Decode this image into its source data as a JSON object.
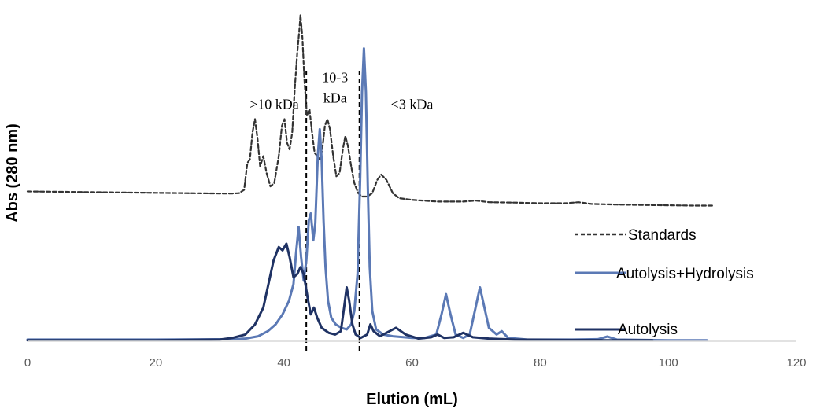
{
  "chart_data": {
    "type": "line",
    "xlabel": "Elution (mL)",
    "ylabel": "Abs (280 nm)",
    "xlim": [
      0,
      120
    ],
    "ylim": [
      0,
      1
    ],
    "x_ticks": [
      "0",
      "20",
      "40",
      "60",
      "80",
      "100",
      "120"
    ],
    "legend_position": "right",
    "annotations": [
      {
        "lines": [
          ">10 kDa"
        ],
        "x": 38.5,
        "y": 0.69
      },
      {
        "lines": [
          "10-3",
          "kDa"
        ],
        "x": 48,
        "y": 0.77
      },
      {
        "lines": [
          "<3 kDa"
        ],
        "x": 60,
        "y": 0.69
      }
    ],
    "vlines": [
      43.5,
      51.8
    ],
    "series": [
      {
        "name": "Standards",
        "color": "#333333",
        "dash": "dashed",
        "points": [
          [
            0,
            0.445
          ],
          [
            10,
            0.443
          ],
          [
            20,
            0.441
          ],
          [
            30,
            0.439
          ],
          [
            32,
            0.439
          ],
          [
            33,
            0.44
          ],
          [
            33.8,
            0.45
          ],
          [
            34.3,
            0.53
          ],
          [
            34.7,
            0.54
          ],
          [
            35.1,
            0.62
          ],
          [
            35.5,
            0.66
          ],
          [
            35.9,
            0.6
          ],
          [
            36.3,
            0.52
          ],
          [
            36.8,
            0.55
          ],
          [
            37.3,
            0.5
          ],
          [
            37.9,
            0.46
          ],
          [
            38.5,
            0.47
          ],
          [
            39.2,
            0.55
          ],
          [
            39.7,
            0.64
          ],
          [
            40.1,
            0.66
          ],
          [
            40.5,
            0.59
          ],
          [
            40.9,
            0.57
          ],
          [
            41.3,
            0.62
          ],
          [
            41.7,
            0.75
          ],
          [
            42.1,
            0.86
          ],
          [
            42.4,
            0.92
          ],
          [
            42.6,
            0.97
          ],
          [
            42.9,
            0.9
          ],
          [
            43.2,
            0.78
          ],
          [
            43.6,
            0.67
          ],
          [
            44,
            0.69
          ],
          [
            44.4,
            0.62
          ],
          [
            44.8,
            0.56
          ],
          [
            45.2,
            0.55
          ],
          [
            45.6,
            0.54
          ],
          [
            46,
            0.57
          ],
          [
            46.4,
            0.64
          ],
          [
            46.8,
            0.66
          ],
          [
            47.2,
            0.63
          ],
          [
            47.7,
            0.55
          ],
          [
            48.2,
            0.49
          ],
          [
            48.7,
            0.5
          ],
          [
            49.2,
            0.57
          ],
          [
            49.6,
            0.61
          ],
          [
            50,
            0.58
          ],
          [
            50.5,
            0.52
          ],
          [
            51,
            0.47
          ],
          [
            51.6,
            0.44
          ],
          [
            52.2,
            0.43
          ],
          [
            53,
            0.43
          ],
          [
            53.8,
            0.44
          ],
          [
            54.6,
            0.48
          ],
          [
            55.2,
            0.495
          ],
          [
            56,
            0.48
          ],
          [
            57,
            0.44
          ],
          [
            58,
            0.425
          ],
          [
            60,
            0.42
          ],
          [
            64,
            0.415
          ],
          [
            68,
            0.415
          ],
          [
            70,
            0.418
          ],
          [
            72,
            0.413
          ],
          [
            76,
            0.412
          ],
          [
            80,
            0.41
          ],
          [
            84,
            0.41
          ],
          [
            86,
            0.413
          ],
          [
            88,
            0.408
          ],
          [
            92,
            0.406
          ],
          [
            96,
            0.405
          ],
          [
            100,
            0.404
          ],
          [
            104,
            0.403
          ],
          [
            107,
            0.403
          ]
        ]
      },
      {
        "name": "Autolysis+Hydrolysis",
        "color": "#5b79b5",
        "dash": "solid",
        "points": [
          [
            0,
            0.005
          ],
          [
            20,
            0.005
          ],
          [
            32,
            0.006
          ],
          [
            34,
            0.008
          ],
          [
            36,
            0.015
          ],
          [
            37.5,
            0.03
          ],
          [
            38.7,
            0.05
          ],
          [
            39.8,
            0.08
          ],
          [
            40.8,
            0.12
          ],
          [
            41.5,
            0.17
          ],
          [
            41.9,
            0.26
          ],
          [
            42.3,
            0.34
          ],
          [
            42.7,
            0.25
          ],
          [
            43.1,
            0.18
          ],
          [
            43.5,
            0.24
          ],
          [
            43.9,
            0.36
          ],
          [
            44.2,
            0.38
          ],
          [
            44.6,
            0.3
          ],
          [
            44.9,
            0.35
          ],
          [
            45.3,
            0.55
          ],
          [
            45.6,
            0.63
          ],
          [
            45.9,
            0.54
          ],
          [
            46.2,
            0.36
          ],
          [
            46.5,
            0.22
          ],
          [
            46.9,
            0.12
          ],
          [
            47.4,
            0.07
          ],
          [
            48.1,
            0.05
          ],
          [
            49,
            0.04
          ],
          [
            49.8,
            0.035
          ],
          [
            50.5,
            0.05
          ],
          [
            51,
            0.09
          ],
          [
            51.5,
            0.2
          ],
          [
            51.9,
            0.48
          ],
          [
            52.2,
            0.74
          ],
          [
            52.5,
            0.87
          ],
          [
            52.8,
            0.74
          ],
          [
            53.1,
            0.46
          ],
          [
            53.4,
            0.22
          ],
          [
            53.8,
            0.09
          ],
          [
            54.4,
            0.035
          ],
          [
            55.5,
            0.02
          ],
          [
            57,
            0.015
          ],
          [
            60,
            0.01
          ],
          [
            62,
            0.01
          ],
          [
            63.8,
            0.02
          ],
          [
            64.6,
            0.08
          ],
          [
            65.3,
            0.14
          ],
          [
            66,
            0.08
          ],
          [
            66.8,
            0.02
          ],
          [
            68,
            0.01
          ],
          [
            69,
            0.02
          ],
          [
            69.8,
            0.09
          ],
          [
            70.6,
            0.16
          ],
          [
            71.3,
            0.1
          ],
          [
            72,
            0.04
          ],
          [
            73.2,
            0.02
          ],
          [
            74,
            0.03
          ],
          [
            75,
            0.01
          ],
          [
            78,
            0.005
          ],
          [
            85,
            0.005
          ],
          [
            89,
            0.006
          ],
          [
            90.5,
            0.014
          ],
          [
            92,
            0.005
          ],
          [
            100,
            0.003
          ],
          [
            106,
            0.003
          ]
        ]
      },
      {
        "name": "Autolysis",
        "color": "#1f3264",
        "dash": "solid",
        "points": [
          [
            0,
            0.003
          ],
          [
            10,
            0.003
          ],
          [
            20,
            0.003
          ],
          [
            30,
            0.005
          ],
          [
            32,
            0.01
          ],
          [
            34,
            0.02
          ],
          [
            35.5,
            0.05
          ],
          [
            36.8,
            0.1
          ],
          [
            37.6,
            0.17
          ],
          [
            38.4,
            0.24
          ],
          [
            39.2,
            0.28
          ],
          [
            39.8,
            0.27
          ],
          [
            40.4,
            0.29
          ],
          [
            40.9,
            0.25
          ],
          [
            41.5,
            0.19
          ],
          [
            42.1,
            0.2
          ],
          [
            42.6,
            0.22
          ],
          [
            43.1,
            0.2
          ],
          [
            43.7,
            0.13
          ],
          [
            44.2,
            0.08
          ],
          [
            44.7,
            0.1
          ],
          [
            45.2,
            0.07
          ],
          [
            45.9,
            0.04
          ],
          [
            47,
            0.025
          ],
          [
            48,
            0.02
          ],
          [
            48.9,
            0.03
          ],
          [
            49.4,
            0.1
          ],
          [
            49.8,
            0.16
          ],
          [
            50.2,
            0.12
          ],
          [
            50.7,
            0.05
          ],
          [
            51.2,
            0.02
          ],
          [
            52,
            0.01
          ],
          [
            53,
            0.02
          ],
          [
            53.5,
            0.05
          ],
          [
            54,
            0.03
          ],
          [
            55,
            0.015
          ],
          [
            56,
            0.025
          ],
          [
            57.5,
            0.04
          ],
          [
            59,
            0.02
          ],
          [
            61,
            0.008
          ],
          [
            63,
            0.012
          ],
          [
            64,
            0.02
          ],
          [
            65,
            0.01
          ],
          [
            66.5,
            0.012
          ],
          [
            68,
            0.025
          ],
          [
            69.5,
            0.012
          ],
          [
            72,
            0.008
          ],
          [
            76,
            0.005
          ],
          [
            82,
            0.004
          ],
          [
            90,
            0.003
          ],
          [
            97.5,
            0.003
          ]
        ]
      }
    ]
  }
}
